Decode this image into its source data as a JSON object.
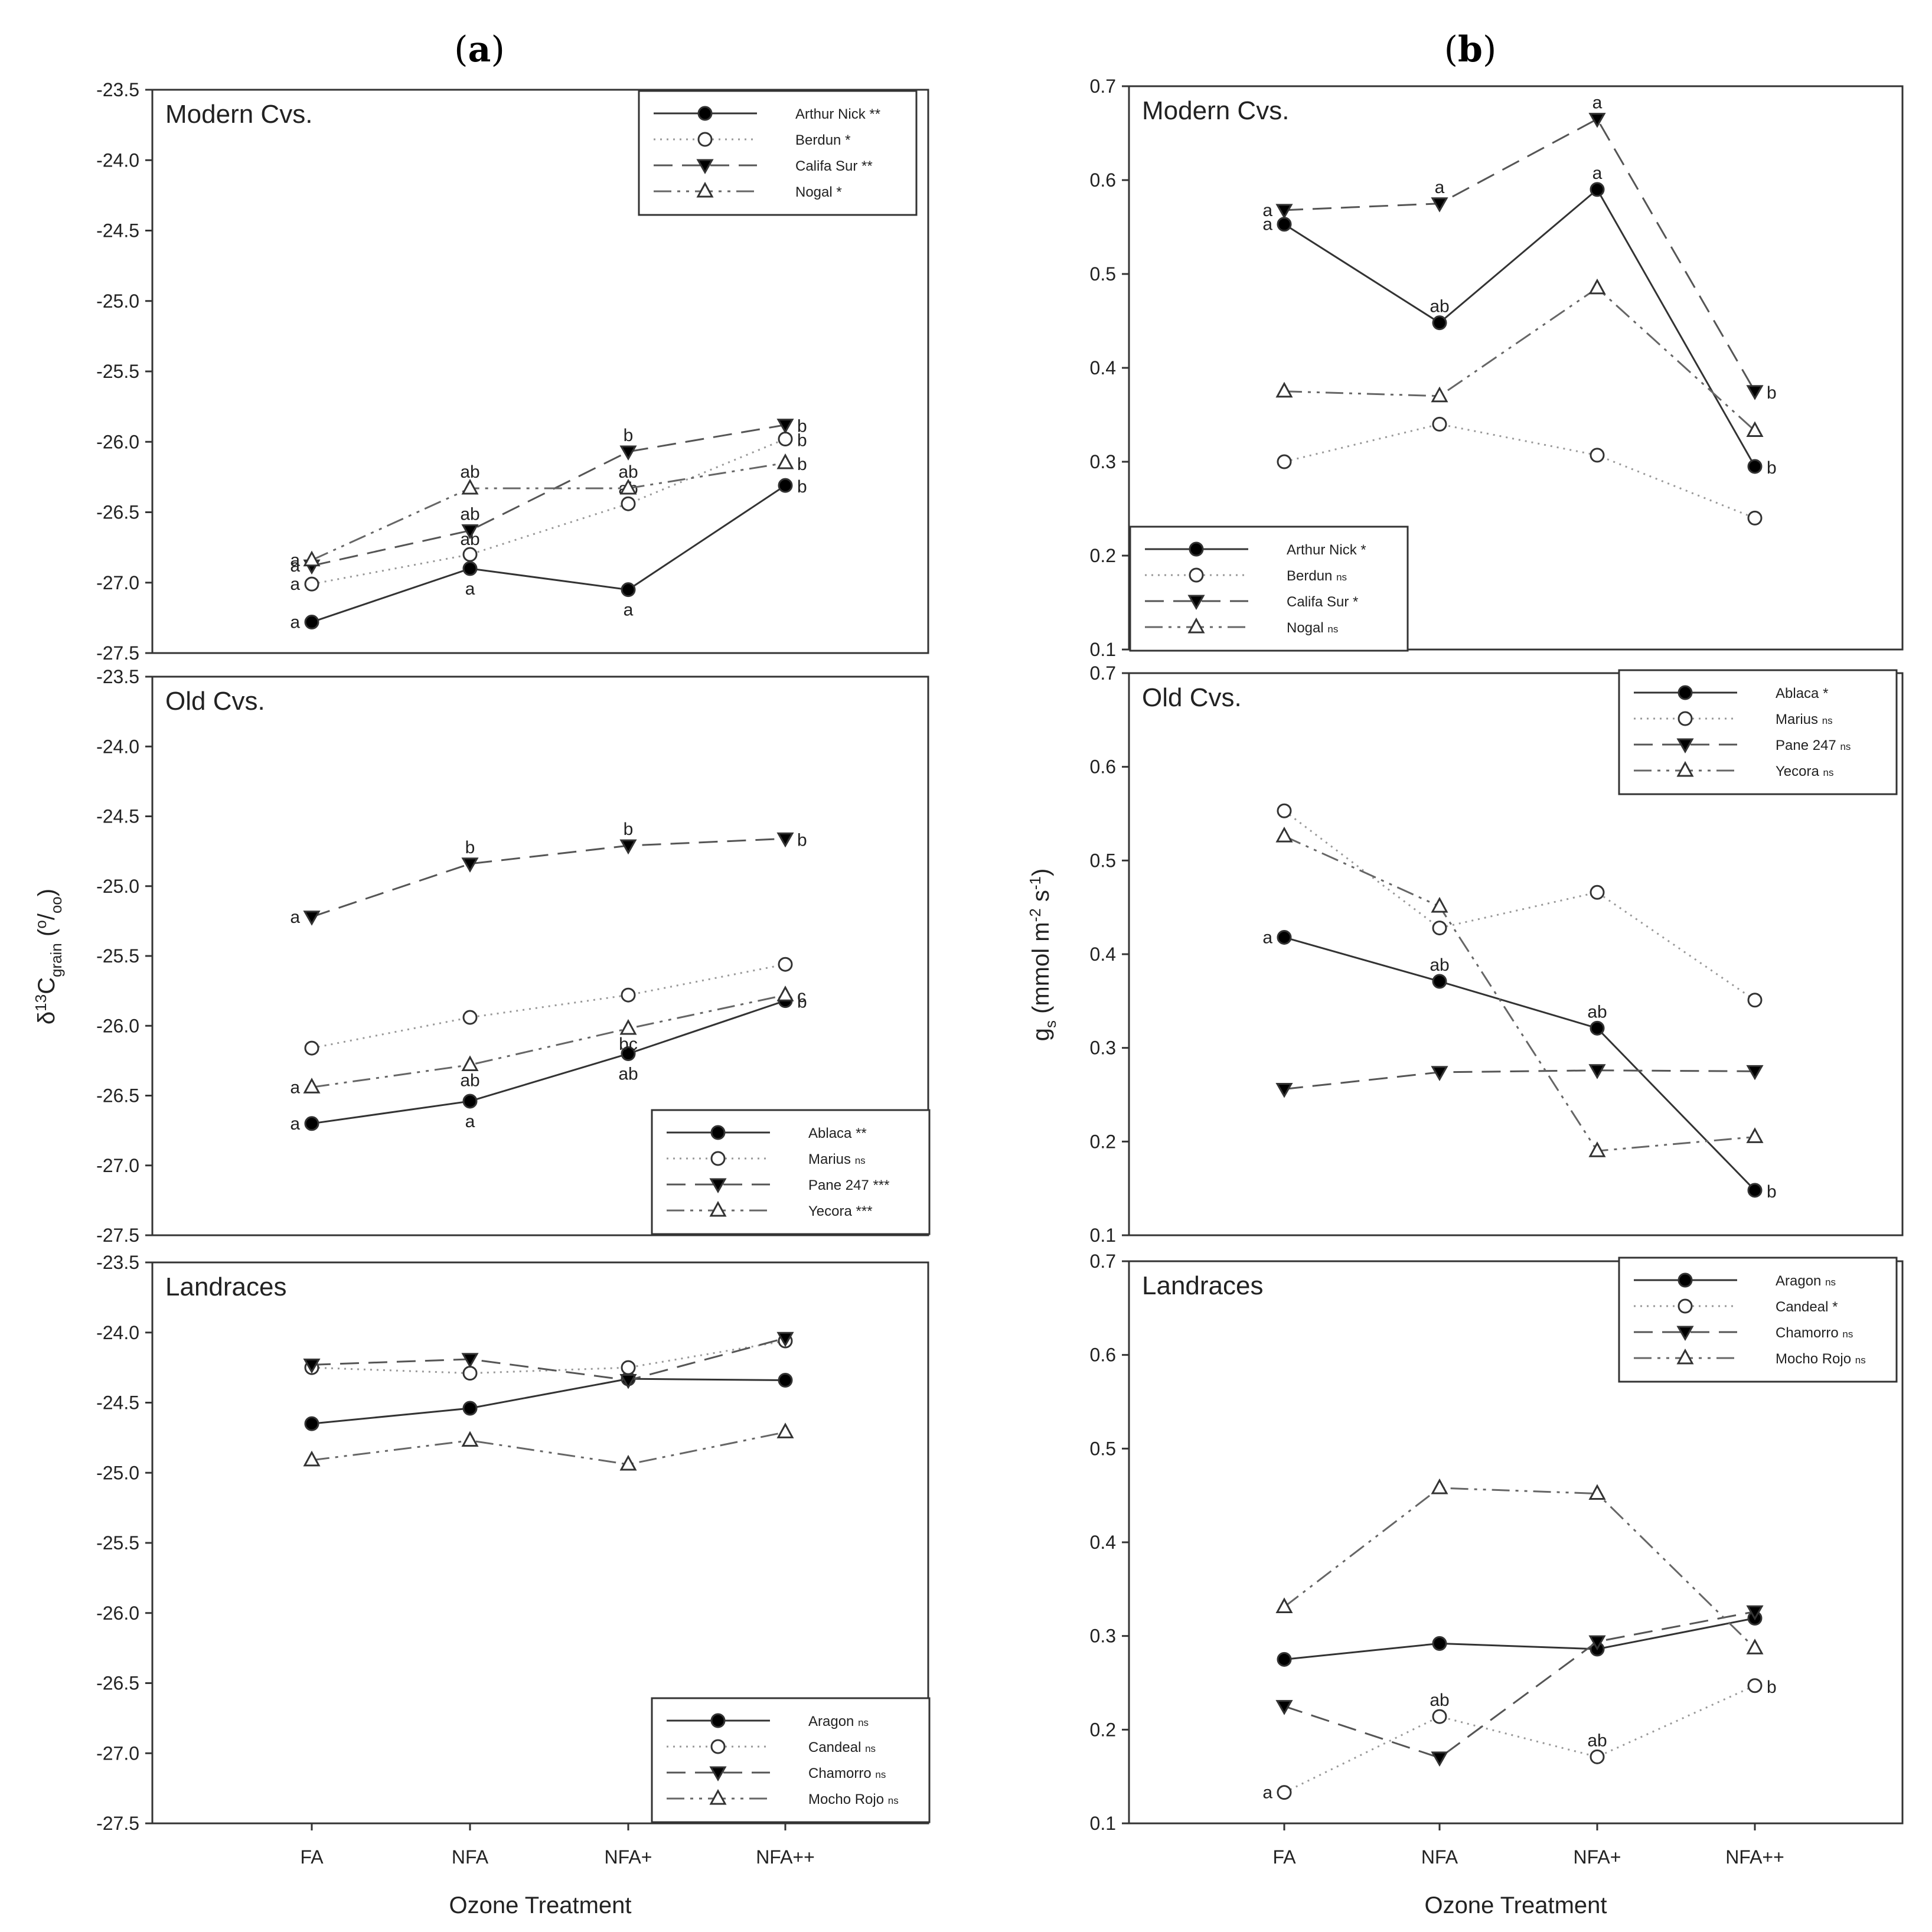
{
  "figure_titles": {
    "a": "a",
    "b": "b"
  },
  "chart_data": [
    {
      "id": "a",
      "type": "line",
      "xlabel": "Ozone Treatment",
      "ylabel_parts": [
        "δ",
        "13",
        "C",
        "grain",
        " (",
        "o",
        "/",
        "oo",
        ")"
      ],
      "categories": [
        "FA",
        "NFA",
        "NFA+",
        "NFA++"
      ],
      "ylim": [
        -27.5,
        -23.5
      ],
      "yticks": [
        "-23.5",
        "-24.0",
        "-24.5",
        "-25.0",
        "-25.5",
        "-26.0",
        "-26.5",
        "-27.0",
        "-27.5"
      ],
      "yticks_values": [
        -23.5,
        -24,
        -24.5,
        -25,
        -25.5,
        -26,
        -26.5,
        -27,
        -27.5
      ],
      "panels": [
        {
          "title": "Modern Cvs.",
          "legend_position": "top-right",
          "series": [
            {
              "name": "Arthur Nick",
              "sig": "**",
              "values": [
                -27.28,
                -26.9,
                -27.05,
                -26.31
              ],
              "letters": [
                "a",
                "a",
                "a",
                "b"
              ]
            },
            {
              "name": "Berdun",
              "sig": "*",
              "values": [
                -27.01,
                -26.8,
                -26.44,
                -25.98
              ],
              "letters": [
                "a",
                "ab",
                "ab",
                "b"
              ]
            },
            {
              "name": "Califa Sur",
              "sig": "**",
              "values": [
                -26.88,
                -26.63,
                -26.07,
                -25.88
              ],
              "letters": [
                "a",
                "ab",
                "b",
                "b"
              ]
            },
            {
              "name": "Nogal",
              "sig": "*",
              "values": [
                -26.84,
                -26.33,
                -26.33,
                -26.15
              ],
              "letters": [
                "a",
                "ab",
                "ab",
                "b"
              ]
            }
          ]
        },
        {
          "title": "Old Cvs.",
          "legend_position": "bottom-right",
          "series": [
            {
              "name": "Ablaca",
              "sig": "**",
              "values": [
                -26.7,
                -26.54,
                -26.2,
                -25.82
              ],
              "letters": [
                "a",
                "a",
                "ab",
                "b"
              ]
            },
            {
              "name": "Marius",
              "sig": "ns",
              "values": [
                -26.16,
                -25.94,
                -25.78,
                -25.56
              ],
              "letters": []
            },
            {
              "name": "Pane 247",
              "sig": "***",
              "values": [
                -25.22,
                -24.84,
                -24.71,
                -24.66
              ],
              "letters": [
                "a",
                "b",
                "b",
                "b"
              ]
            },
            {
              "name": "Yecora",
              "sig": "***",
              "values": [
                -26.44,
                -26.28,
                -26.02,
                -25.78
              ],
              "letters": [
                "a",
                "ab",
                "bc",
                "c"
              ]
            }
          ]
        },
        {
          "title": "Landraces",
          "legend_position": "bottom-right",
          "series": [
            {
              "name": "Aragon",
              "sig": "ns",
              "values": [
                -24.65,
                -24.54,
                -24.33,
                -24.34
              ],
              "letters": []
            },
            {
              "name": "Candeal",
              "sig": "ns",
              "values": [
                -24.25,
                -24.29,
                -24.25,
                -24.06
              ],
              "letters": []
            },
            {
              "name": "Chamorro",
              "sig": "ns",
              "values": [
                -24.23,
                -24.19,
                -24.34,
                -24.04
              ],
              "letters": []
            },
            {
              "name": "Mocho Rojo",
              "sig": "ns",
              "values": [
                -24.91,
                -24.77,
                -24.94,
                -24.71
              ],
              "letters": []
            }
          ]
        }
      ]
    },
    {
      "id": "b",
      "type": "line",
      "xlabel": "Ozone Treatment",
      "ylabel_parts": [
        "g",
        "s",
        " (mmol m",
        "-2",
        " s",
        "-1",
        ")"
      ],
      "categories": [
        "FA",
        "NFA",
        "NFA+",
        "NFA++"
      ],
      "ylim": [
        0.1,
        0.7
      ],
      "yticks": [
        "0.7",
        "0.6",
        "0.5",
        "0.4",
        "0.3",
        "0.2",
        "0.1"
      ],
      "yticks_values": [
        0.7,
        0.6,
        0.5,
        0.4,
        0.3,
        0.2,
        0.1
      ],
      "panels": [
        {
          "title": "Modern Cvs.",
          "legend_position": "bottom-left",
          "series": [
            {
              "name": "Arthur Nick",
              "sig": "*",
              "values": [
                0.553,
                0.448,
                0.59,
                0.295
              ],
              "letters": [
                "a",
                "ab",
                "a",
                "b"
              ]
            },
            {
              "name": "Berdun",
              "sig": "ns",
              "values": [
                0.3,
                0.34,
                0.307,
                0.24
              ],
              "letters": []
            },
            {
              "name": "Califa Sur",
              "sig": "*",
              "values": [
                0.568,
                0.575,
                0.665,
                0.375
              ],
              "letters": [
                "a",
                "a",
                "a",
                "b"
              ]
            },
            {
              "name": "Nogal",
              "sig": "ns",
              "values": [
                0.375,
                0.37,
                0.485,
                0.333
              ],
              "letters": []
            }
          ]
        },
        {
          "title": "Old Cvs.",
          "legend_position": "top-right",
          "series": [
            {
              "name": "Ablaca",
              "sig": "*",
              "values": [
                0.418,
                0.371,
                0.321,
                0.148
              ],
              "letters": [
                "a",
                "ab",
                "ab",
                "b"
              ]
            },
            {
              "name": "Marius",
              "sig": "ns",
              "values": [
                0.553,
                0.428,
                0.466,
                0.351
              ],
              "letters": []
            },
            {
              "name": "Pane 247",
              "sig": "ns",
              "values": [
                0.256,
                0.274,
                0.276,
                0.275
              ],
              "letters": []
            },
            {
              "name": "Yecora",
              "sig": "ns",
              "values": [
                0.526,
                0.451,
                0.19,
                0.205
              ],
              "letters": []
            }
          ]
        },
        {
          "title": "Landraces",
          "legend_position": "top-right",
          "series": [
            {
              "name": "Aragon",
              "sig": "ns",
              "values": [
                0.275,
                0.292,
                0.286,
                0.319
              ],
              "letters": []
            },
            {
              "name": "Candeal",
              "sig": "*",
              "values": [
                0.133,
                0.214,
                0.171,
                0.247
              ],
              "letters": [
                "a",
                "ab",
                "ab",
                "b"
              ]
            },
            {
              "name": "Chamorro",
              "sig": "ns",
              "values": [
                0.225,
                0.17,
                0.294,
                0.326
              ],
              "letters": []
            },
            {
              "name": "Mocho Rojo",
              "sig": "ns",
              "values": [
                0.331,
                0.458,
                0.452,
                0.287
              ],
              "letters": []
            }
          ]
        }
      ]
    }
  ]
}
